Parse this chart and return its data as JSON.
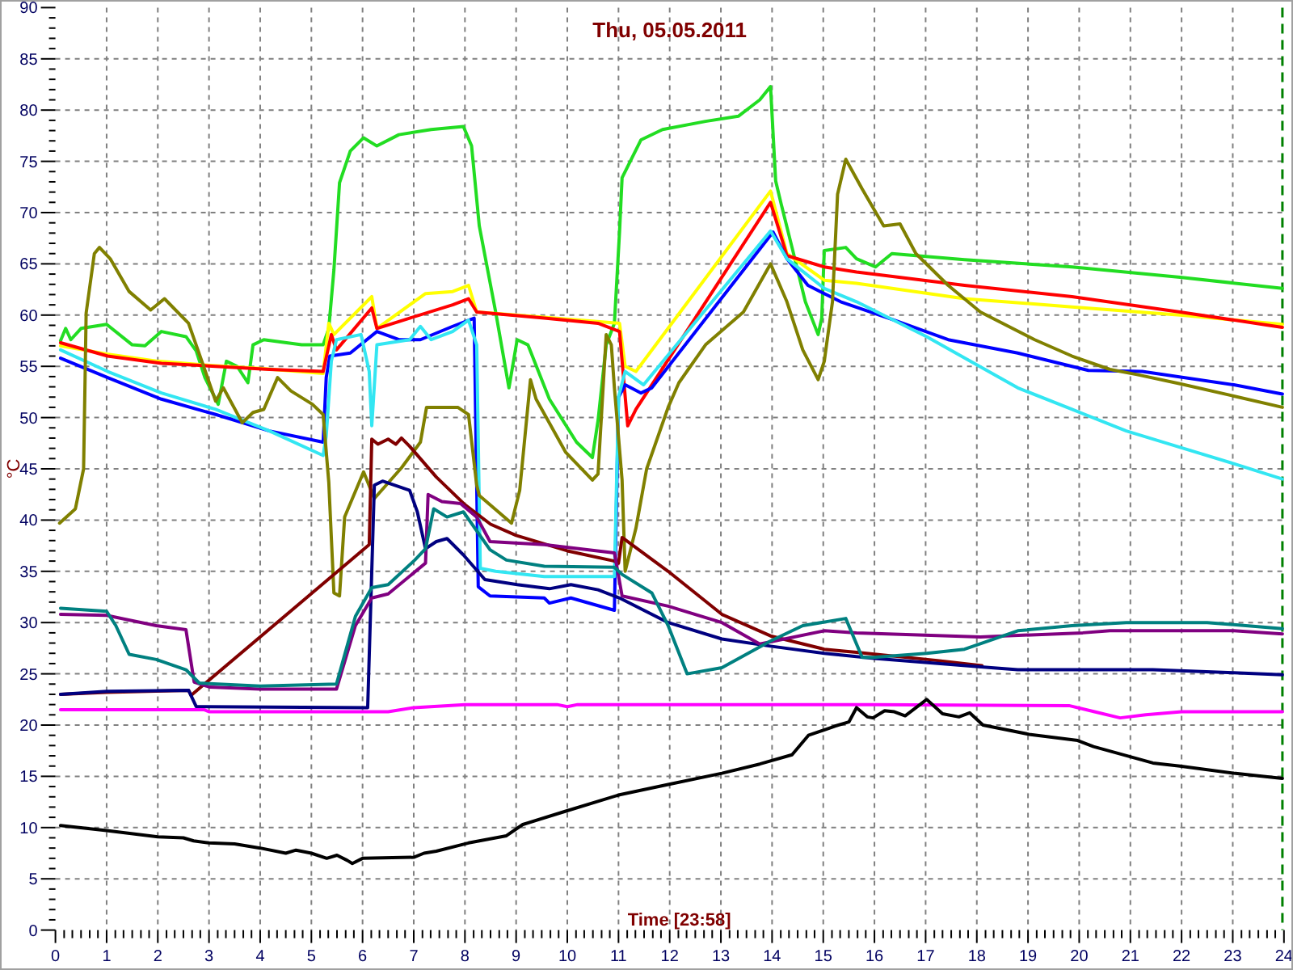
{
  "chart_data": {
    "type": "line",
    "title": "Thu, 05.05.2011",
    "xlabel": "Time [23:58]",
    "ylabel": "°C",
    "xlim": [
      0,
      24
    ],
    "ylim": [
      0,
      90
    ],
    "grid": true,
    "xticks": [
      0,
      {
        "value": 0.17,
        "label": null
      },
      {
        "value": 0.33,
        "label": null
      },
      {
        "value": 0.5,
        "label": null
      },
      {
        "value": 0.67,
        "label": null
      },
      {
        "value": 0.83,
        "label": null
      },
      1,
      {
        "value": 1.17,
        "label": null
      },
      {
        "value": 1.33,
        "label": null
      },
      {
        "value": 1.5,
        "label": null
      },
      {
        "value": 1.67,
        "label": null
      },
      {
        "value": 1.83,
        "label": null
      },
      2,
      {
        "value": 2.17,
        "label": null
      },
      {
        "value": 2.33,
        "label": null
      },
      {
        "value": 2.5,
        "label": null
      },
      {
        "value": 2.67,
        "label": null
      },
      {
        "value": 2.83,
        "label": null
      },
      3,
      {
        "value": 3.17,
        "label": null
      },
      {
        "value": 3.33,
        "label": null
      },
      {
        "value": 3.5,
        "label": null
      },
      {
        "value": 3.67,
        "label": null
      },
      {
        "value": 3.83,
        "label": null
      },
      4,
      {
        "value": 4.17,
        "label": null
      },
      {
        "value": 4.33,
        "label": null
      },
      {
        "value": 4.5,
        "label": null
      },
      {
        "value": 4.67,
        "label": null
      },
      {
        "value": 4.83,
        "label": null
      },
      5,
      {
        "value": 5.17,
        "label": null
      },
      {
        "value": 5.33,
        "label": null
      },
      {
        "value": 5.5,
        "label": null
      },
      {
        "value": 5.67,
        "label": null
      },
      {
        "value": 5.83,
        "label": null
      },
      6,
      {
        "value": 6.17,
        "label": null
      },
      {
        "value": 6.33,
        "label": null
      },
      {
        "value": 6.5,
        "label": null
      },
      {
        "value": 6.67,
        "label": null
      },
      {
        "value": 6.83,
        "label": null
      },
      7,
      {
        "value": 7.17,
        "label": null
      },
      {
        "value": 7.33,
        "label": null
      },
      {
        "value": 7.5,
        "label": null
      },
      {
        "value": 7.67,
        "label": null
      },
      {
        "value": 7.83,
        "label": null
      },
      8,
      {
        "value": 8.17,
        "label": null
      },
      {
        "value": 8.33,
        "label": null
      },
      {
        "value": 8.5,
        "label": null
      },
      {
        "value": 8.67,
        "label": null
      },
      {
        "value": 8.83,
        "label": null
      },
      9,
      {
        "value": 9.17,
        "label": null
      },
      {
        "value": 9.33,
        "label": null
      },
      {
        "value": 9.5,
        "label": null
      },
      {
        "value": 9.67,
        "label": null
      },
      {
        "value": 9.83,
        "label": null
      },
      10,
      {
        "value": 10.17,
        "label": null
      },
      {
        "value": 10.33,
        "label": null
      },
      {
        "value": 10.5,
        "label": null
      },
      {
        "value": 10.67,
        "label": null
      },
      {
        "value": 10.83,
        "label": null
      },
      11,
      {
        "value": 11.17,
        "label": null
      },
      {
        "value": 11.33,
        "label": null
      },
      {
        "value": 11.5,
        "label": null
      },
      {
        "value": 11.67,
        "label": null
      },
      {
        "value": 11.83,
        "label": null
      },
      12,
      {
        "value": 12.17,
        "label": null
      },
      {
        "value": 12.33,
        "label": null
      },
      {
        "value": 12.5,
        "label": null
      },
      {
        "value": 12.67,
        "label": null
      },
      {
        "value": 12.83,
        "label": null
      },
      13,
      {
        "value": 13.17,
        "label": null
      },
      {
        "value": 13.33,
        "label": null
      },
      {
        "value": 13.5,
        "label": null
      },
      {
        "value": 13.67,
        "label": null
      },
      {
        "value": 13.83,
        "label": null
      },
      14,
      {
        "value": 14.17,
        "label": null
      },
      {
        "value": 14.33,
        "label": null
      },
      {
        "value": 14.5,
        "label": null
      },
      {
        "value": 14.67,
        "label": null
      },
      {
        "value": 14.83,
        "label": null
      },
      15,
      {
        "value": 15.17,
        "label": null
      },
      {
        "value": 15.33,
        "label": null
      },
      {
        "value": 15.5,
        "label": null
      },
      {
        "value": 15.67,
        "label": null
      },
      {
        "value": 15.83,
        "label": null
      },
      16,
      {
        "value": 16.17,
        "label": null
      },
      {
        "value": 16.33,
        "label": null
      },
      {
        "value": 16.5,
        "label": null
      },
      {
        "value": 16.67,
        "label": null
      },
      {
        "value": 16.83,
        "label": null
      },
      17,
      {
        "value": 17.17,
        "label": null
      },
      {
        "value": 17.33,
        "label": null
      },
      {
        "value": 17.5,
        "label": null
      },
      {
        "value": 17.67,
        "label": null
      },
      {
        "value": 17.83,
        "label": null
      },
      18,
      {
        "value": 18.17,
        "label": null
      },
      {
        "value": 18.33,
        "label": null
      },
      {
        "value": 18.5,
        "label": null
      },
      {
        "value": 18.67,
        "label": null
      },
      {
        "value": 18.83,
        "label": null
      },
      19,
      {
        "value": 19.17,
        "label": null
      },
      {
        "value": 19.33,
        "label": null
      },
      {
        "value": 19.5,
        "label": null
      },
      {
        "value": 19.67,
        "label": null
      },
      {
        "value": 19.83,
        "label": null
      },
      20,
      {
        "value": 20.17,
        "label": null
      },
      {
        "value": 20.33,
        "label": null
      },
      {
        "value": 20.5,
        "label": null
      },
      {
        "value": 20.67,
        "label": null
      },
      {
        "value": 20.83,
        "label": null
      },
      21,
      {
        "value": 21.17,
        "label": null
      },
      {
        "value": 21.33,
        "label": null
      },
      {
        "value": 21.5,
        "label": null
      },
      {
        "value": 21.67,
        "label": null
      },
      {
        "value": 21.83,
        "label": null
      },
      22,
      {
        "value": 22.17,
        "label": null
      },
      {
        "value": 22.33,
        "label": null
      },
      {
        "value": 22.5,
        "label": null
      },
      {
        "value": 22.67,
        "label": null
      },
      {
        "value": 22.83,
        "label": null
      },
      23,
      {
        "value": 23.17,
        "label": null
      },
      {
        "value": 23.33,
        "label": null
      },
      {
        "value": 23.5,
        "label": null
      },
      {
        "value": 23.67,
        "label": null
      },
      {
        "value": 23.83,
        "label": null
      },
      24
    ],
    "yticks": [
      0,
      {
        "value": 1,
        "label": null
      },
      {
        "value": 2,
        "label": null
      },
      {
        "value": 3,
        "label": null
      },
      {
        "value": 4,
        "label": null
      },
      5,
      {
        "value": 6,
        "label": null
      },
      {
        "value": 7,
        "label": null
      },
      {
        "value": 8,
        "label": null
      },
      {
        "value": 9,
        "label": null
      },
      10,
      {
        "value": 11,
        "label": null
      },
      {
        "value": 12,
        "label": null
      },
      {
        "value": 13,
        "label": null
      },
      {
        "value": 14,
        "label": null
      },
      15,
      {
        "value": 16,
        "label": null
      },
      {
        "value": 17,
        "label": null
      },
      {
        "value": 18,
        "label": null
      },
      {
        "value": 19,
        "label": null
      },
      20,
      {
        "value": 21,
        "label": null
      },
      {
        "value": 22,
        "label": null
      },
      {
        "value": 23,
        "label": null
      },
      {
        "value": 24,
        "label": null
      },
      25,
      {
        "value": 26,
        "label": null
      },
      {
        "value": 27,
        "label": null
      },
      {
        "value": 28,
        "label": null
      },
      {
        "value": 29,
        "label": null
      },
      30,
      {
        "value": 31,
        "label": null
      },
      {
        "value": 32,
        "label": null
      },
      {
        "value": 33,
        "label": null
      },
      {
        "value": 34,
        "label": null
      },
      35,
      {
        "value": 36,
        "label": null
      },
      {
        "value": 37,
        "label": null
      },
      {
        "value": 38,
        "label": null
      },
      {
        "value": 39,
        "label": null
      },
      40,
      {
        "value": 41,
        "label": null
      },
      {
        "value": 42,
        "label": null
      },
      {
        "value": 43,
        "label": null
      },
      {
        "value": 44,
        "label": null
      },
      45,
      {
        "value": 46,
        "label": null
      },
      {
        "value": 47,
        "label": null
      },
      {
        "value": 48,
        "label": null
      },
      {
        "value": 49,
        "label": null
      },
      50,
      {
        "value": 51,
        "label": null
      },
      {
        "value": 52,
        "label": null
      },
      {
        "value": 53,
        "label": null
      },
      {
        "value": 54,
        "label": null
      },
      55,
      {
        "value": 56,
        "label": null
      },
      {
        "value": 57,
        "label": null
      },
      {
        "value": 58,
        "label": null
      },
      {
        "value": 59,
        "label": null
      },
      60,
      {
        "value": 61,
        "label": null
      },
      {
        "value": 62,
        "label": null
      },
      {
        "value": 63,
        "label": null
      },
      {
        "value": 64,
        "label": null
      },
      65,
      {
        "value": 66,
        "label": null
      },
      {
        "value": 67,
        "label": null
      },
      {
        "value": 68,
        "label": null
      },
      {
        "value": 69,
        "label": null
      },
      70,
      {
        "value": 71,
        "label": null
      },
      {
        "value": 72,
        "label": null
      },
      {
        "value": 73,
        "label": null
      },
      {
        "value": 74,
        "label": null
      },
      75,
      {
        "value": 76,
        "label": null
      },
      {
        "value": 77,
        "label": null
      },
      {
        "value": 78,
        "label": null
      },
      {
        "value": 79,
        "label": null
      },
      80,
      {
        "value": 81,
        "label": null
      },
      {
        "value": 82,
        "label": null
      },
      {
        "value": 83,
        "label": null
      },
      {
        "value": 84,
        "label": null
      },
      85,
      {
        "value": 86,
        "label": null
      },
      {
        "value": 87,
        "label": null
      },
      {
        "value": 88,
        "label": null
      },
      {
        "value": 89,
        "label": null
      },
      90
    ],
    "ref_lines": [
      {
        "axis": "x",
        "value": 23.97,
        "color": "#008000",
        "line_style": "dashed"
      }
    ],
    "series": [
      {
        "color": "#22dd22",
        "x": [
          0.1,
          0.2,
          0.3,
          0.5,
          1.0,
          1.5,
          1.75,
          2.07,
          2.55,
          2.75,
          2.92,
          3.18,
          3.34,
          3.55,
          3.76,
          3.86,
          4.07,
          4.81,
          5.23,
          5.34,
          5.44,
          5.55,
          5.76,
          6.02,
          6.28,
          6.71,
          7.34,
          7.97,
          8.13,
          8.28,
          8.6,
          8.86,
          9.02,
          9.23,
          9.65,
          10.18,
          10.49,
          10.6,
          10.76,
          10.92,
          11.02,
          11.07,
          11.44,
          11.86,
          12.7,
          13.34,
          13.76,
          13.97,
          14.07,
          14.18,
          14.39,
          14.65,
          14.9,
          14.97,
          15.02,
          15.44,
          15.65,
          16.02,
          16.34,
          17.76,
          19.86,
          21.97,
          23.97
        ],
        "values": [
          57.5,
          58.7,
          57.6,
          58.7,
          59.1,
          57.1,
          57.0,
          58.4,
          57.9,
          56.5,
          53.9,
          51.3,
          55.5,
          55.0,
          53.4,
          57.1,
          57.6,
          57.1,
          57.1,
          58.7,
          64.4,
          72.9,
          76.0,
          77.3,
          76.5,
          77.6,
          78.1,
          78.4,
          76.5,
          68.7,
          60.3,
          52.9,
          57.6,
          57.1,
          51.8,
          47.6,
          46.1,
          49.7,
          57.1,
          59.2,
          68.1,
          73.4,
          77.1,
          78.1,
          78.9,
          79.4,
          81.0,
          82.3,
          73.1,
          70.8,
          66.6,
          61.3,
          58.1,
          59.7,
          66.3,
          66.6,
          65.5,
          64.7,
          66.0,
          65.4,
          64.7,
          63.7,
          62.6
        ]
      },
      {
        "color": "#ffff00",
        "x": [
          0.1,
          1.0,
          2.0,
          3.0,
          4.0,
          5.23,
          5.34,
          5.44,
          6.18,
          6.28,
          7.23,
          7.76,
          8.07,
          8.23,
          9.5,
          11.02,
          11.13,
          11.34,
          13.97,
          14.29,
          15.02,
          15.65,
          17.76,
          19.86,
          21.97,
          23.97
        ],
        "values": [
          57.0,
          56.2,
          55.5,
          55.1,
          54.8,
          54.3,
          59.2,
          58.1,
          61.8,
          58.7,
          62.1,
          62.3,
          62.9,
          60.3,
          59.8,
          59.2,
          55.0,
          54.5,
          72.1,
          66.0,
          63.4,
          63.1,
          61.6,
          60.8,
          60.0,
          59.1
        ]
      },
      {
        "color": "#ff0000",
        "x": [
          0.1,
          1.02,
          2.07,
          3.13,
          4.18,
          5.23,
          5.39,
          5.49,
          6.18,
          6.28,
          6.92,
          7.76,
          8.07,
          8.23,
          9.55,
          10.6,
          11.02,
          11.18,
          11.34,
          13.97,
          14.29,
          15.02,
          15.65,
          17.76,
          19.86,
          21.97,
          23.97
        ],
        "values": [
          57.3,
          56.0,
          55.3,
          55.0,
          54.7,
          54.5,
          58.1,
          56.6,
          60.7,
          58.7,
          59.7,
          61.0,
          61.6,
          60.3,
          59.7,
          59.2,
          58.4,
          49.2,
          50.8,
          71.0,
          65.8,
          64.7,
          64.2,
          62.9,
          61.8,
          60.3,
          58.8
        ]
      },
      {
        "color": "#0000ff",
        "x": [
          0.1,
          1.02,
          2.07,
          3.13,
          4.18,
          5.23,
          5.29,
          5.36,
          5.76,
          6.28,
          6.71,
          7.13,
          7.76,
          8.18,
          8.26,
          8.49,
          9.55,
          9.65,
          10.07,
          10.92,
          11.0,
          11.13,
          11.44,
          11.65,
          14.02,
          14.29,
          14.7,
          15.34,
          16.39,
          17.44,
          18.8,
          20.18,
          21.23,
          23.02,
          23.97
        ],
        "values": [
          55.8,
          53.9,
          51.8,
          50.3,
          48.7,
          47.6,
          53.9,
          56.0,
          56.3,
          58.4,
          57.6,
          57.6,
          58.9,
          59.7,
          33.5,
          32.6,
          32.4,
          31.9,
          32.4,
          31.2,
          52.0,
          53.2,
          52.4,
          52.9,
          68.1,
          65.5,
          62.9,
          61.3,
          59.5,
          57.6,
          56.3,
          54.6,
          54.5,
          53.2,
          52.3
        ]
      },
      {
        "color": "#33e6f2",
        "x": [
          0.1,
          1.02,
          2.07,
          3.13,
          4.18,
          5.23,
          5.29,
          5.39,
          5.49,
          5.97,
          6.13,
          6.18,
          6.28,
          6.92,
          7.13,
          7.34,
          7.76,
          8.07,
          8.23,
          8.3,
          8.6,
          9.55,
          10.92,
          11.0,
          11.13,
          11.49,
          13.97,
          14.29,
          15.02,
          15.65,
          17.02,
          18.8,
          19.86,
          20.92,
          21.97,
          23.02,
          23.97
        ],
        "values": [
          56.6,
          54.5,
          52.4,
          50.8,
          48.7,
          46.3,
          48.2,
          55.5,
          57.6,
          58.1,
          54.5,
          49.2,
          57.1,
          57.6,
          58.9,
          57.6,
          58.4,
          59.5,
          57.1,
          35.3,
          35.0,
          34.5,
          34.5,
          52.0,
          54.5,
          53.2,
          68.2,
          65.5,
          62.6,
          61.3,
          57.9,
          52.9,
          50.8,
          48.7,
          47.1,
          45.5,
          44.0
        ]
      },
      {
        "color": "#808000",
        "x": [
          0.08,
          0.39,
          0.55,
          0.6,
          0.76,
          0.86,
          1.07,
          1.44,
          1.86,
          2.13,
          2.6,
          2.86,
          3.13,
          3.28,
          3.65,
          3.86,
          4.07,
          4.34,
          4.6,
          5.02,
          5.23,
          5.34,
          5.44,
          5.55,
          5.65,
          6.02,
          6.23,
          6.76,
          7.13,
          7.25,
          7.86,
          8.07,
          8.23,
          8.28,
          8.91,
          9.07,
          9.28,
          9.39,
          9.97,
          10.49,
          10.6,
          10.76,
          10.86,
          10.92,
          11.07,
          11.13,
          11.34,
          11.55,
          11.97,
          12.18,
          12.7,
          13.44,
          13.97,
          14.29,
          14.6,
          14.9,
          15.02,
          15.18,
          15.28,
          15.44,
          15.76,
          16.18,
          16.5,
          16.81,
          17.44,
          18.07,
          19.13,
          19.86,
          20.6,
          21.13,
          21.97,
          23.02,
          23.97
        ],
        "values": [
          39.7,
          41.1,
          45.0,
          60.2,
          66.0,
          66.6,
          65.5,
          62.3,
          60.5,
          61.6,
          59.2,
          55.5,
          51.6,
          52.9,
          49.5,
          50.5,
          50.8,
          53.9,
          52.6,
          51.3,
          50.3,
          43.7,
          32.9,
          32.6,
          40.3,
          44.7,
          42.1,
          45.1,
          47.6,
          51.0,
          51.0,
          50.3,
          43.4,
          42.4,
          39.7,
          42.9,
          53.7,
          51.8,
          46.6,
          43.9,
          44.5,
          58.1,
          57.1,
          52.9,
          43.9,
          35.0,
          39.2,
          45.0,
          51.0,
          53.4,
          57.1,
          60.3,
          65.0,
          61.3,
          56.6,
          53.7,
          55.5,
          61.3,
          71.8,
          75.2,
          72.3,
          68.7,
          68.9,
          66.0,
          62.9,
          60.3,
          57.6,
          56.0,
          54.7,
          54.2,
          53.3,
          52.1,
          51.0
        ]
      },
      {
        "color": "#800000",
        "x": [
          0.1,
          1.0,
          2.6,
          2.65,
          6.13,
          6.18,
          6.3,
          6.5,
          6.65,
          6.76,
          6.92,
          7.44,
          8.0,
          8.5,
          9.0,
          10.0,
          10.92,
          11.0,
          11.07,
          11.97,
          13.02,
          13.97,
          15.02,
          15.65,
          17.23,
          18.1
        ],
        "values": [
          23.0,
          23.2,
          23.4,
          22.9,
          37.6,
          47.9,
          47.4,
          47.9,
          47.4,
          48.0,
          47.2,
          44.2,
          41.5,
          39.6,
          38.5,
          37.0,
          36.0,
          35.8,
          38.3,
          35.0,
          30.8,
          28.7,
          27.4,
          27.1,
          26.3,
          25.8
        ]
      },
      {
        "color": "#000080",
        "x": [
          0.1,
          1.0,
          2.6,
          2.75,
          6.1,
          6.23,
          6.39,
          6.92,
          7.07,
          7.23,
          7.44,
          7.65,
          7.97,
          8.39,
          9.02,
          9.65,
          10.07,
          10.6,
          11.02,
          11.97,
          13.02,
          13.97,
          15.02,
          16.0,
          18.28,
          18.8,
          21.44,
          23.02,
          23.97
        ],
        "values": [
          23.0,
          23.3,
          23.4,
          21.8,
          21.7,
          43.4,
          43.8,
          42.9,
          40.8,
          37.2,
          37.9,
          38.2,
          36.6,
          34.2,
          33.7,
          33.3,
          33.7,
          33.2,
          32.4,
          30.0,
          28.4,
          27.7,
          27.0,
          26.5,
          25.6,
          25.4,
          25.4,
          25.1,
          24.9
        ]
      },
      {
        "color": "#800080",
        "x": [
          0.1,
          1.0,
          1.97,
          2.55,
          2.71,
          3.02,
          4.0,
          5.49,
          5.86,
          6.18,
          6.5,
          7.23,
          7.28,
          7.55,
          7.92,
          8.23,
          8.49,
          9.55,
          10.92,
          11.07,
          11.97,
          13.02,
          13.76,
          15.02,
          15.65,
          18.07,
          20.07,
          20.6,
          23.02,
          23.97
        ],
        "values": [
          30.8,
          30.7,
          29.7,
          29.3,
          24.2,
          23.7,
          23.5,
          23.5,
          29.7,
          32.4,
          32.8,
          35.8,
          42.5,
          41.8,
          41.6,
          40.3,
          37.9,
          37.6,
          36.8,
          32.6,
          31.6,
          30.0,
          27.9,
          29.2,
          29.0,
          28.6,
          29.0,
          29.2,
          29.2,
          28.9
        ]
      },
      {
        "color": "#008080",
        "x": [
          0.1,
          1.0,
          1.18,
          1.44,
          1.97,
          2.55,
          2.81,
          4.0,
          5.49,
          5.86,
          6.18,
          6.5,
          7.02,
          7.23,
          7.39,
          7.65,
          7.97,
          8.49,
          8.81,
          9.55,
          10.92,
          11.07,
          11.65,
          11.97,
          12.34,
          13.02,
          13.97,
          14.6,
          15.44,
          15.76,
          15.97,
          17.02,
          17.76,
          18.8,
          19.86,
          20.92,
          22.5,
          23.02,
          23.97
        ],
        "values": [
          31.4,
          31.1,
          29.7,
          26.9,
          26.4,
          25.4,
          24.1,
          23.8,
          24.0,
          30.6,
          33.4,
          33.7,
          36.1,
          37.2,
          41.1,
          40.3,
          40.8,
          37.1,
          36.1,
          35.5,
          35.4,
          34.7,
          32.9,
          29.7,
          25.0,
          25.6,
          28.2,
          29.7,
          30.4,
          26.6,
          26.6,
          27.0,
          27.4,
          29.2,
          29.7,
          30.0,
          30.0,
          29.8,
          29.4
        ]
      },
      {
        "color": "#ff00ff",
        "x": [
          0.1,
          2.9,
          3.0,
          6.5,
          7.0,
          8.0,
          9.8,
          10.0,
          10.2,
          16.0,
          19.8,
          20.3,
          20.8,
          21.3,
          22.0,
          23.97
        ],
        "values": [
          21.5,
          21.5,
          21.3,
          21.3,
          21.7,
          22.0,
          22.0,
          21.8,
          22.0,
          22.0,
          21.9,
          21.3,
          20.7,
          21.0,
          21.3,
          21.3
        ]
      },
      {
        "color": "#000000",
        "x": [
          0.1,
          1.0,
          2.0,
          2.5,
          2.7,
          3.0,
          3.5,
          4.0,
          4.5,
          4.7,
          5.0,
          5.3,
          5.5,
          5.7,
          5.8,
          6.0,
          7.0,
          7.2,
          7.44,
          8.07,
          8.81,
          9.13,
          9.97,
          11.02,
          11.97,
          13.02,
          13.76,
          14.39,
          14.71,
          15.23,
          15.5,
          15.65,
          15.86,
          15.97,
          16.2,
          16.39,
          16.6,
          17.02,
          17.33,
          17.65,
          17.86,
          18.12,
          19.02,
          19.97,
          20.28,
          21.44,
          21.97,
          23.02,
          23.97
        ],
        "values": [
          10.2,
          9.7,
          9.1,
          9.0,
          8.7,
          8.5,
          8.4,
          8.0,
          7.5,
          7.8,
          7.5,
          7.0,
          7.3,
          6.8,
          6.5,
          7.0,
          7.1,
          7.5,
          7.7,
          8.5,
          9.2,
          10.3,
          11.6,
          13.2,
          14.2,
          15.3,
          16.2,
          17.1,
          19.0,
          19.9,
          20.3,
          21.7,
          20.8,
          20.7,
          21.4,
          21.3,
          20.9,
          22.5,
          21.1,
          20.8,
          21.2,
          20.0,
          19.1,
          18.5,
          17.9,
          16.3,
          16.0,
          15.3,
          14.8
        ]
      }
    ]
  }
}
